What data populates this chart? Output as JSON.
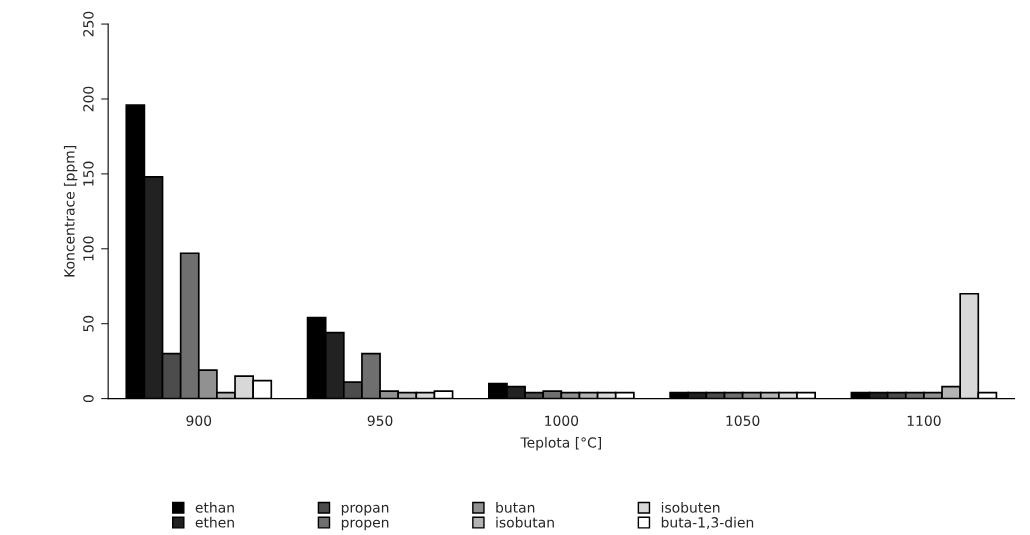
{
  "chart_data": {
    "type": "bar",
    "xlabel": "Teplota [°C]",
    "ylabel": "Koncentrace [ppm]",
    "categories": [
      "900",
      "950",
      "1000",
      "1050",
      "1100"
    ],
    "series": [
      {
        "name": "ethan",
        "color": "#000000",
        "values": [
          196,
          54,
          10,
          4,
          4
        ]
      },
      {
        "name": "ethen",
        "color": "#222222",
        "values": [
          148,
          44,
          8,
          4,
          4
        ]
      },
      {
        "name": "propan",
        "color": "#4c4c4c",
        "values": [
          30,
          11,
          4,
          4,
          4
        ]
      },
      {
        "name": "propen",
        "color": "#6f6f6f",
        "values": [
          97,
          30,
          5,
          4,
          4
        ]
      },
      {
        "name": "butan",
        "color": "#919191",
        "values": [
          19,
          5,
          4,
          4,
          4
        ]
      },
      {
        "name": "isobutan",
        "color": "#b4b4b4",
        "values": [
          4,
          4,
          4,
          4,
          8
        ]
      },
      {
        "name": "isobuten",
        "color": "#d8d8d8",
        "values": [
          15,
          4,
          4,
          4,
          70
        ]
      },
      {
        "name": "buta-1,3-dien",
        "color": "#ffffff",
        "values": [
          12,
          5,
          4,
          4,
          4
        ]
      }
    ],
    "ylim": [
      0,
      250
    ],
    "yticks": [
      0,
      50,
      100,
      150,
      200,
      250
    ],
    "grid": false,
    "legend": "bottom"
  }
}
